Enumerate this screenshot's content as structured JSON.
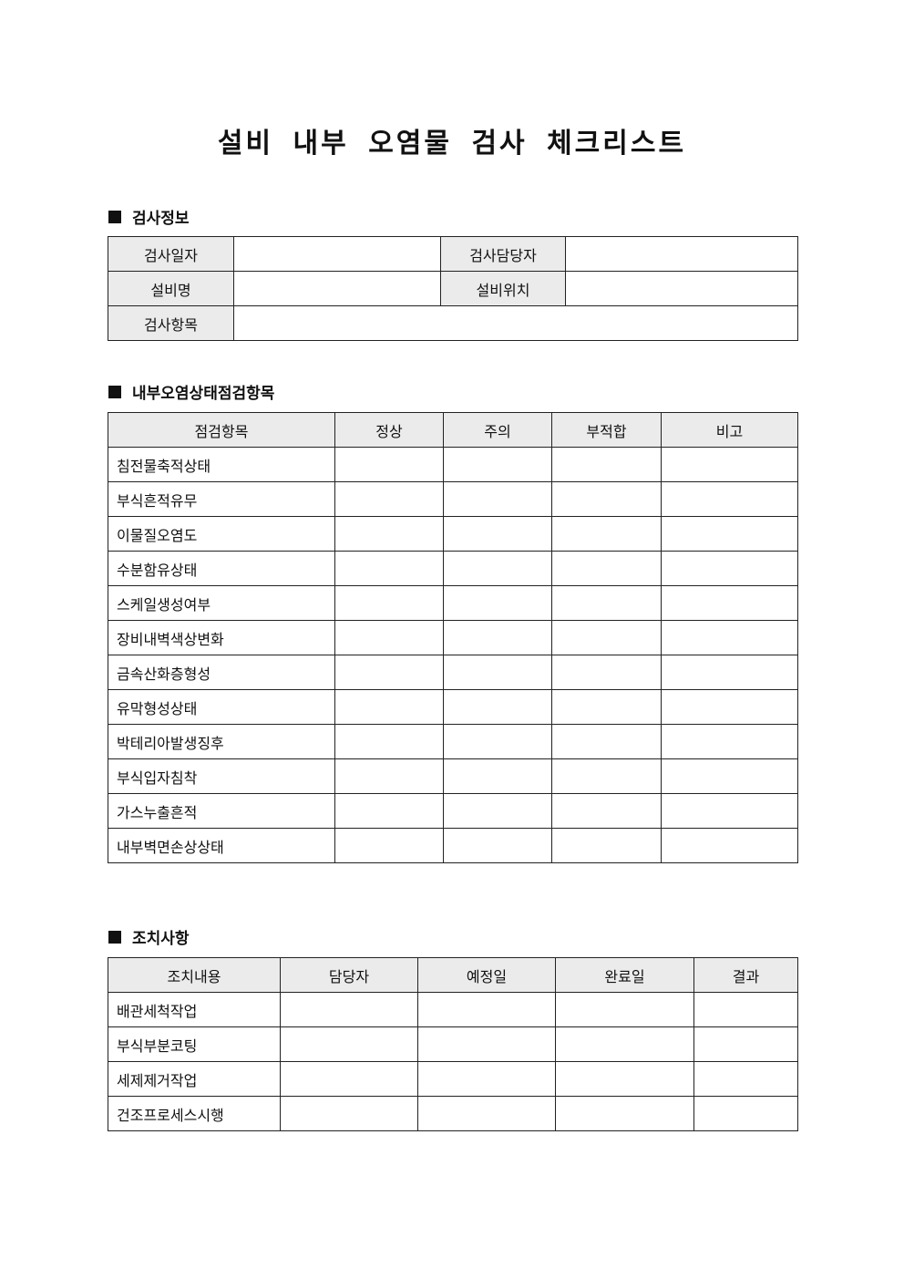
{
  "title": "설비 내부 오염물 검사 체크리스트",
  "info_section": {
    "heading": "검사정보",
    "labels": {
      "date": "검사일자",
      "inspector": "검사담당자",
      "equipment": "설비명",
      "location": "설비위치",
      "item": "검사항목"
    },
    "values": {
      "date": "",
      "inspector": "",
      "equipment": "",
      "location": "",
      "item": ""
    }
  },
  "check_section": {
    "heading": "내부오염상태점검항목",
    "columns": [
      "점검항목",
      "정상",
      "주의",
      "부적합",
      "비고"
    ],
    "rows": [
      "침전물축적상태",
      "부식흔적유무",
      "이물질오염도",
      "수분함유상태",
      "스케일생성여부",
      "장비내벽색상변화",
      "금속산화층형성",
      "유막형성상태",
      "박테리아발생징후",
      "부식입자침착",
      "가스누출흔적",
      "내부벽면손상상태"
    ]
  },
  "action_section": {
    "heading": "조치사항",
    "columns": [
      "조치내용",
      "담당자",
      "예정일",
      "완료일",
      "결과"
    ],
    "rows": [
      "배관세척작업",
      "부식부분코팅",
      "세제제거작업",
      "건조프로세스시행"
    ]
  }
}
